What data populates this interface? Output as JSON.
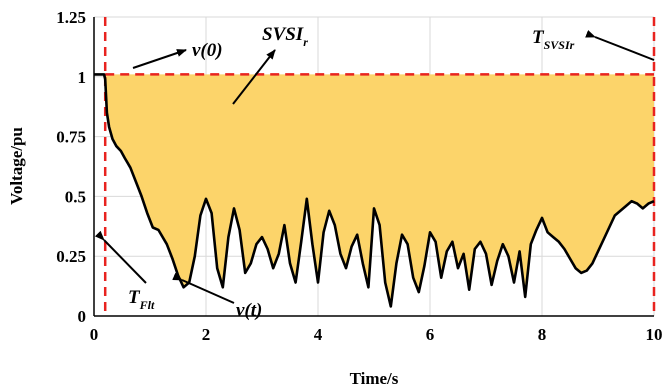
{
  "chart_data": {
    "type": "area",
    "xlabel": "Time/s",
    "ylabel": "Voltage/pu",
    "xlim": [
      0,
      10
    ],
    "ylim": [
      0,
      1.25
    ],
    "x_ticks": [
      "0",
      "2",
      "4",
      "6",
      "8",
      "10"
    ],
    "y_ticks": [
      "0",
      "0.25",
      "0.5",
      "0.75",
      "1",
      "1.25"
    ],
    "grid": true,
    "colors": {
      "fill": "#fcd46a",
      "curve": "#000000",
      "reference": "#e8231f",
      "grid": "#d9d9d9"
    },
    "reference_level": 1.01,
    "fault_time": 0.2,
    "end_time": 10,
    "series": [
      {
        "x": [
          0.0,
          0.18,
          0.2,
          0.23,
          0.27,
          0.33,
          0.4,
          0.48,
          0.55,
          0.65,
          0.75,
          0.85,
          0.95,
          1.05,
          1.15,
          1.3,
          1.4,
          1.5,
          1.6,
          1.7,
          1.8,
          1.9,
          2.0,
          2.1,
          2.2,
          2.3,
          2.4,
          2.5,
          2.6,
          2.7,
          2.8,
          2.9,
          3.0,
          3.1,
          3.2,
          3.3,
          3.4,
          3.5,
          3.6,
          3.7,
          3.8,
          3.9,
          4.0,
          4.1,
          4.2,
          4.3,
          4.4,
          4.5,
          4.6,
          4.7,
          4.8,
          4.9,
          5.0,
          5.1,
          5.2,
          5.3,
          5.4,
          5.5,
          5.6,
          5.7,
          5.8,
          5.9,
          6.0,
          6.1,
          6.2,
          6.3,
          6.4,
          6.5,
          6.6,
          6.7,
          6.8,
          6.9,
          7.0,
          7.1,
          7.2,
          7.3,
          7.4,
          7.5,
          7.6,
          7.7,
          7.8,
          7.9,
          8.0,
          8.1,
          8.2,
          8.3,
          8.4,
          8.5,
          8.6,
          8.7,
          8.8,
          8.9,
          9.0,
          9.1,
          9.2,
          9.3,
          9.4,
          9.5,
          9.6,
          9.7,
          9.8,
          9.9,
          10.0
        ],
        "y": [
          1.01,
          1.01,
          0.99,
          0.85,
          0.79,
          0.74,
          0.71,
          0.69,
          0.66,
          0.62,
          0.56,
          0.5,
          0.43,
          0.37,
          0.36,
          0.3,
          0.24,
          0.17,
          0.12,
          0.14,
          0.25,
          0.42,
          0.49,
          0.43,
          0.2,
          0.12,
          0.33,
          0.45,
          0.36,
          0.18,
          0.22,
          0.3,
          0.33,
          0.28,
          0.2,
          0.26,
          0.38,
          0.22,
          0.14,
          0.31,
          0.49,
          0.3,
          0.14,
          0.35,
          0.44,
          0.38,
          0.26,
          0.2,
          0.29,
          0.34,
          0.22,
          0.12,
          0.45,
          0.38,
          0.14,
          0.04,
          0.22,
          0.34,
          0.3,
          0.16,
          0.1,
          0.21,
          0.35,
          0.31,
          0.16,
          0.27,
          0.31,
          0.2,
          0.26,
          0.11,
          0.28,
          0.31,
          0.26,
          0.13,
          0.23,
          0.3,
          0.25,
          0.14,
          0.27,
          0.08,
          0.3,
          0.36,
          0.41,
          0.35,
          0.33,
          0.31,
          0.28,
          0.24,
          0.2,
          0.18,
          0.19,
          0.22,
          0.27,
          0.32,
          0.37,
          0.42,
          0.44,
          0.46,
          0.48,
          0.47,
          0.45,
          0.47,
          0.48
        ]
      }
    ],
    "annotations": {
      "v0": "v(0)",
      "svsi_base": "SVSI",
      "svsi_sub": "r",
      "tsvsi_base": "T",
      "tsvsi_sub": "SVSIr",
      "tflt_base": "T",
      "tflt_sub": "Flt",
      "vt": "v(t)"
    }
  }
}
